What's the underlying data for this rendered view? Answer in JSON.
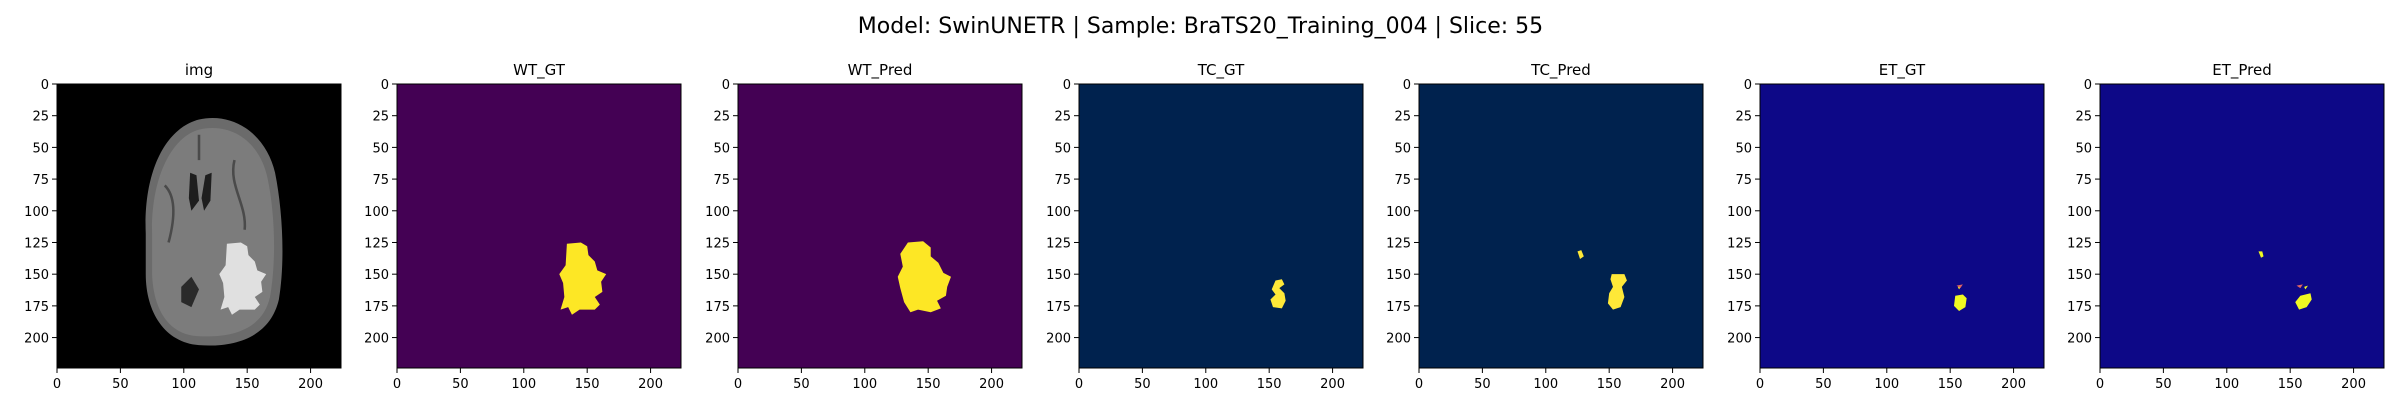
{
  "figure_title": "Model: SwinUNETR | Sample: BraTS20_Training_004 | Slice: 55",
  "chart_data": [
    {
      "type": "image",
      "title": "img",
      "colormap": "gray",
      "xlim": [
        0,
        224
      ],
      "ylim": [
        224,
        0
      ],
      "xticks": [
        0,
        50,
        100,
        150,
        200
      ],
      "yticks": [
        0,
        25,
        50,
        75,
        100,
        125,
        150,
        175,
        200
      ],
      "background": "#000000",
      "foreground": "#ffffff"
    },
    {
      "type": "image",
      "title": "WT_GT",
      "colormap": "viridis",
      "xlim": [
        0,
        224
      ],
      "ylim": [
        224,
        0
      ],
      "xticks": [
        0,
        50,
        100,
        150,
        200
      ],
      "yticks": [
        0,
        25,
        50,
        75,
        100,
        125,
        150,
        175,
        200
      ],
      "background": "#440154",
      "foreground": "#fde725"
    },
    {
      "type": "image",
      "title": "WT_Pred",
      "colormap": "viridis",
      "xlim": [
        0,
        224
      ],
      "ylim": [
        224,
        0
      ],
      "xticks": [
        0,
        50,
        100,
        150,
        200
      ],
      "yticks": [
        0,
        25,
        50,
        75,
        100,
        125,
        150,
        175,
        200
      ],
      "background": "#440154",
      "foreground": "#fde725"
    },
    {
      "type": "image",
      "title": "TC_GT",
      "colormap": "cividis",
      "xlim": [
        0,
        224
      ],
      "ylim": [
        224,
        0
      ],
      "xticks": [
        0,
        50,
        100,
        150,
        200
      ],
      "yticks": [
        0,
        25,
        50,
        75,
        100,
        125,
        150,
        175,
        200
      ],
      "background": "#00224e",
      "foreground": "#fee838"
    },
    {
      "type": "image",
      "title": "TC_Pred",
      "colormap": "cividis",
      "xlim": [
        0,
        224
      ],
      "ylim": [
        224,
        0
      ],
      "xticks": [
        0,
        50,
        100,
        150,
        200
      ],
      "yticks": [
        0,
        25,
        50,
        75,
        100,
        125,
        150,
        175,
        200
      ],
      "background": "#00224e",
      "foreground": "#fee838"
    },
    {
      "type": "image",
      "title": "ET_GT",
      "colormap": "plasma",
      "xlim": [
        0,
        224
      ],
      "ylim": [
        224,
        0
      ],
      "xticks": [
        0,
        50,
        100,
        150,
        200
      ],
      "yticks": [
        0,
        25,
        50,
        75,
        100,
        125,
        150,
        175,
        200
      ],
      "background": "#0d0887",
      "foreground": "#f0f921"
    },
    {
      "type": "image",
      "title": "ET_Pred",
      "colormap": "plasma",
      "xlim": [
        0,
        224
      ],
      "ylim": [
        224,
        0
      ],
      "xticks": [
        0,
        50,
        100,
        150,
        200
      ],
      "yticks": [
        0,
        25,
        50,
        75,
        100,
        125,
        150,
        175,
        200
      ],
      "background": "#0d0887",
      "foreground": "#f0f921"
    }
  ]
}
